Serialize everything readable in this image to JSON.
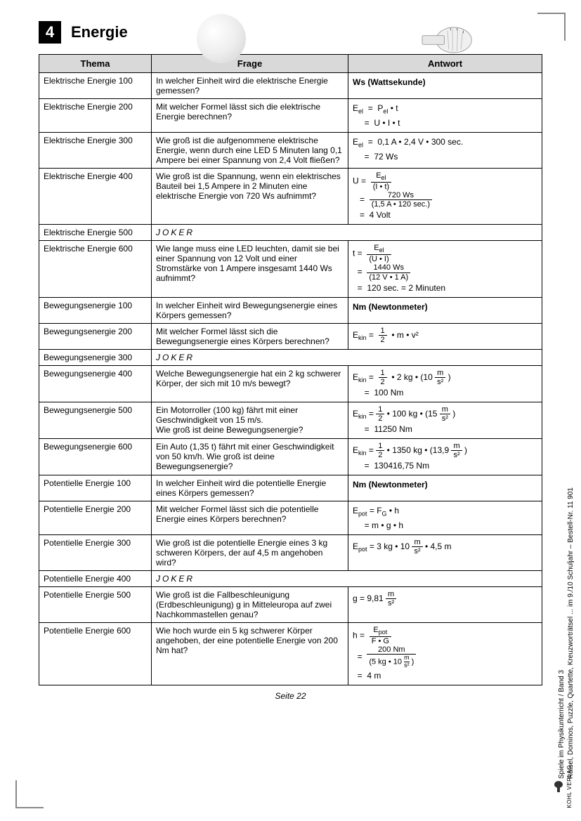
{
  "chapter": {
    "number": "4",
    "title": "Energie"
  },
  "columns": {
    "c1": "Thema",
    "c2": "Frage",
    "c3": "Antwort"
  },
  "rows": [
    {
      "thema": "Elektrische Energie 100",
      "frage": "In welcher Einheit wird die elektrische Energie gemessen?",
      "antwort_html": "<b>Ws (Wattsekunde)</b>"
    },
    {
      "thema": "Elektrische Energie 200",
      "frage": "Mit welcher Formel lässt sich die elektrische Energie berechnen?",
      "antwort_html": "E<sub>el</sub> &nbsp;= &nbsp;P<sub>el</sub> • t<br>&nbsp;&nbsp;&nbsp;&nbsp;&nbsp;= &nbsp;U • I • t"
    },
    {
      "thema": "Elektrische Energie 300",
      "frage": "Wie groß ist die aufgenommene elektrische Energie, wenn durch eine LED 5 Minuten lang 0,1 Ampere bei einer Spannung von 2,4 Volt fließen?",
      "antwort_html": "E<sub>el</sub> &nbsp;= &nbsp;0,1 A • 2,4 V • 300 sec.<br>&nbsp;&nbsp;&nbsp;&nbsp;&nbsp;= &nbsp;72 Ws"
    },
    {
      "thema": "Elektrische Energie 400",
      "frage": "Wie groß ist die Spannung, wenn ein elektrisches Bauteil bei 1,5 Ampere in 2 Minuten eine elektrische Energie von 720 Ws aufnimmt?",
      "antwort_html": "U = &nbsp;<span class='frac'><span class='num'>&nbsp;E<sub>el</sub>&nbsp;</span><span class='den'>(I • t)</span></span><br>&nbsp;&nbsp;&nbsp;= &nbsp;<span class='frac'><span class='num'>&nbsp;&nbsp;&nbsp;&nbsp;720 Ws&nbsp;&nbsp;&nbsp;&nbsp;</span><span class='den'>(1,5 A • 120 sec.)</span></span><br>&nbsp;&nbsp;&nbsp;= &nbsp;4 Volt"
    },
    {
      "thema": "Elektrische Energie 500",
      "frage_html": "<span class='joker'>JOKER</span>",
      "span": true
    },
    {
      "thema": "Elektrische Energie 600",
      "frage": "Wie lange muss eine LED leuchten, damit sie bei einer Spannung von 12 Volt und einer Stromstärke von 1 Ampere insgesamt 1440 Ws aufnimmt?",
      "antwort_html": "t = &nbsp;<span class='frac'><span class='num'>&nbsp;E<sub>el</sub>&nbsp;</span><span class='den'>(U • I)</span></span><br>&nbsp;&nbsp;= &nbsp;<span class='frac'><span class='num'>&nbsp;1440 Ws&nbsp;</span><span class='den'>(12 V • 1 A)</span></span><br>&nbsp;&nbsp;= &nbsp;120 sec. = 2 Minuten"
    },
    {
      "thema": "Bewegungsenergie 100",
      "frage": "In welcher Einheit wird Bewegungsenergie eines Körpers gemessen?",
      "antwort_html": "<b>Nm (Newtonmeter)</b>"
    },
    {
      "thema": "Bewegungsenergie 200",
      "frage": "Mit welcher Formel lässt sich die Bewegungsenergie eines Körpers berechnen?",
      "antwort_html": "E<sub>kin</sub> = &nbsp;<span class='frac'><span class='num'>1</span><span class='den'>2</span></span>&nbsp; • m • v²"
    },
    {
      "thema": "Bewegungsenergie 300",
      "frage_html": "<span class='joker'>JOKER</span>",
      "span": true
    },
    {
      "thema": "Bewegungsenergie 400",
      "frage": "Welche Bewegungsenergie hat ein 2 kg schwerer Körper, der sich mit 10 m/s bewegt?",
      "antwort_html": "E<sub>kin</sub> = &nbsp;<span class='frac'><span class='num'>1</span><span class='den'>2</span></span>&nbsp; • 2 kg • (10 <span class='frac'><span class='num'>m</span><span class='den'>s²</span></span> )<br>&nbsp;&nbsp;&nbsp;&nbsp;&nbsp;= &nbsp;100 Nm"
    },
    {
      "thema": "Bewegungsenergie 500",
      "frage": "Ein Motorroller (100 kg) fährt mit einer Geschwindigkeit von 15 m/s.\nWie groß ist deine Bewegungsenergie?",
      "antwort_html": "E<sub>kin</sub> = <span class='frac'><span class='num'>1</span><span class='den'>2</span></span> • 100 kg • (15 <span class='frac'><span class='num'>m</span><span class='den'>s²</span></span> )<br>&nbsp;&nbsp;&nbsp;&nbsp;&nbsp;= &nbsp;11250 Nm"
    },
    {
      "thema": "Bewegungsenergie 600",
      "frage": "Ein Auto (1,35 t) fährt mit einer Geschwindigkeit von 50 km/h. Wie groß ist deine Bewegungsenergie?",
      "antwort_html": "E<sub>kin</sub> = <span class='frac'><span class='num'>1</span><span class='den'>2</span></span> • 1350 kg • (13,9 <span class='frac'><span class='num'>m</span><span class='den'>s²</span></span> )<br>&nbsp;&nbsp;&nbsp;&nbsp;&nbsp;= &nbsp;130416,75 Nm"
    },
    {
      "thema": "Potentielle Energie 100",
      "frage": "In welcher Einheit wird die potentielle Energie eines Körpers gemessen?",
      "antwort_html": "<b>Nm (Newtonmeter)</b>"
    },
    {
      "thema": "Potentielle Energie 200",
      "frage": "Mit welcher Formel lässt sich die potentielle Energie eines Körpers berechnen?",
      "antwort_html": "E<sub>pot</sub> = F<sub>G</sub> • h<br>&nbsp;&nbsp;&nbsp;&nbsp;&nbsp;= m • g • h"
    },
    {
      "thema": "Potentielle Energie 300",
      "frage": "Wie groß ist die potentielle Energie eines 3 kg schweren Körpers, der auf 4,5 m angehoben wird?",
      "antwort_html": "E<sub>pot</sub> = 3 kg • 10 <span class='frac'><span class='num'>m</span><span class='den'>s²</span></span> • 4,5 m"
    },
    {
      "thema": "Potentielle Energie 400",
      "frage_html": "<span class='joker'>JOKER</span>",
      "span": true
    },
    {
      "thema": "Potentielle Energie 500",
      "frage": "Wie groß ist die Fallbeschleunigung (Erdbeschleunigung) g in Mitteleuropa auf zwei Nachkommastellen genau?",
      "antwort_html": "g = 9,81 <span class='frac'><span class='num'>m</span><span class='den'>s²</span></span>"
    },
    {
      "thema": "Potentielle Energie 600",
      "frage": "Wie hoch wurde ein 5 kg schwerer Körper angehoben, der eine potentielle Energie von 200 Nm hat?",
      "antwort_html": "h = &nbsp;<span class='frac'><span class='num'>E<sub>pot</sub></span><span class='den'>F • G</span></span><br>&nbsp;&nbsp;= &nbsp;<span class='frac'><span class='num'>&nbsp;&nbsp;200 Nm&nbsp;&nbsp;</span><span class='den'>(5 kg • 10 <span style='display:inline-block;vertical-align:middle'><span style='display:block;border-bottom:1px solid #000;font-size:9px'>m</span><span style='display:block;font-size:9px'>s²</span></span> )</span></span><br>&nbsp;&nbsp;= &nbsp;4 m"
    }
  ],
  "footer": "Seite 22",
  "side": "Spiele im Physikunterricht  /  Band 3\nRätsel, Dominos, Puzzle, Quartette, Kreuzworträtsel ... im 9./10 Schuljahr       –       Bestell-Nr. 11 901",
  "logo": "KOHL VERLAG"
}
